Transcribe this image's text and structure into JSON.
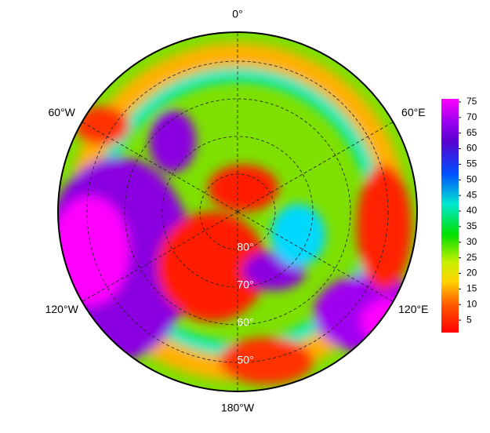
{
  "map": {
    "center_lat": -90,
    "lat_lim": [
      90,
      42.3
    ],
    "lon_ticks": [
      {
        "value": 0,
        "label": "0°"
      },
      {
        "value": 60,
        "label": "60°E"
      },
      {
        "value": 120,
        "label": "120°E"
      },
      {
        "value": 180,
        "label": "180°W"
      },
      {
        "value": -120,
        "label": "120°W"
      },
      {
        "value": -60,
        "label": "60°W"
      }
    ],
    "lat_ticks": [
      {
        "value": 80,
        "label": "80°"
      },
      {
        "value": 70,
        "label": "70°"
      },
      {
        "value": 60,
        "label": "60°"
      },
      {
        "value": 50,
        "label": "50°"
      }
    ]
  },
  "colorbar": {
    "lim": [
      1,
      76
    ],
    "ticks": [
      5,
      10,
      15,
      20,
      25,
      30,
      35,
      40,
      45,
      50,
      55,
      60,
      65,
      70,
      75
    ]
  }
}
